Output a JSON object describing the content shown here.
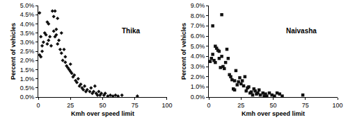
{
  "chart_data": [
    {
      "type": "scatter",
      "title": "Thika",
      "xlabel": "Kmh over speed limit",
      "ylabel": "Percent of vehicles",
      "x": [
        1,
        1,
        2,
        2,
        3,
        3,
        4,
        5,
        6,
        7,
        7,
        8,
        8,
        9,
        10,
        11,
        12,
        12,
        13,
        13,
        14,
        14,
        15,
        15,
        16,
        17,
        18,
        18,
        19,
        20,
        21,
        21,
        22,
        23,
        24,
        25,
        25,
        26,
        27,
        28,
        29,
        30,
        31,
        32,
        33,
        34,
        35,
        36,
        37,
        38,
        40,
        41,
        42,
        43,
        44,
        45,
        46,
        47,
        48,
        49,
        51,
        52,
        54,
        56,
        58,
        60,
        62,
        65,
        77
      ],
      "values": [
        4.6,
        2.3,
        2.2,
        3.3,
        2.8,
        2.5,
        3.0,
        3.5,
        3.4,
        4.1,
        2.9,
        4.0,
        3.1,
        3.3,
        2.8,
        4.7,
        3.6,
        4.4,
        3.3,
        4.7,
        3.4,
        3.7,
        4.3,
        2.9,
        3.1,
        2.6,
        2.4,
        3.5,
        2.0,
        2.6,
        1.9,
        2.2,
        1.7,
        1.6,
        1.5,
        1.4,
        1.8,
        1.3,
        1.1,
        1.2,
        0.9,
        0.8,
        1.0,
        0.6,
        0.7,
        0.5,
        0.4,
        0.6,
        0.3,
        0.4,
        0.3,
        0.5,
        0.2,
        0.3,
        0.6,
        0.2,
        0.1,
        0.3,
        0.1,
        0.2,
        0.1,
        0.2,
        0.05,
        0.1,
        0.05,
        0.1,
        0.05,
        0.1,
        0.05
      ],
      "xlim": [
        0,
        100
      ],
      "xticks": [
        0,
        25,
        50,
        75,
        100
      ],
      "ylim": [
        0,
        5
      ],
      "yticks": [
        {
          "value": 0,
          "label": "0.0%"
        },
        {
          "value": 0.5,
          "label": "0.5%"
        },
        {
          "value": 1,
          "label": "1.0%"
        },
        {
          "value": 1.5,
          "label": "1.5%"
        },
        {
          "value": 2,
          "label": "2.0%"
        },
        {
          "value": 2.5,
          "label": "2.5%"
        },
        {
          "value": 3,
          "label": "3.0%"
        },
        {
          "value": 3.5,
          "label": "3.5%"
        },
        {
          "value": 4,
          "label": "4.0%"
        },
        {
          "value": 4.5,
          "label": "4.5%"
        },
        {
          "value": 5,
          "label": "5.0%"
        }
      ],
      "marker": "diamond",
      "color": "#111111",
      "grid": false
    },
    {
      "type": "scatter",
      "title": "Naivasha",
      "xlabel": "Kmh over speed limit",
      "ylabel": "Percent of vehicles",
      "x": [
        1,
        2,
        3,
        3,
        4,
        5,
        5,
        6,
        7,
        8,
        8,
        9,
        10,
        10,
        11,
        12,
        13,
        14,
        15,
        16,
        17,
        18,
        19,
        20,
        20,
        21,
        22,
        23,
        24,
        25,
        26,
        27,
        28,
        29,
        30,
        31,
        32,
        33,
        34,
        35,
        36,
        37,
        38,
        39,
        40,
        42,
        43,
        44,
        45,
        47,
        49,
        51,
        53,
        55,
        57,
        73
      ],
      "values": [
        3.5,
        3.8,
        7.0,
        4.2,
        3.6,
        5.0,
        3.4,
        4.8,
        4.6,
        3.8,
        4.5,
        2.9,
        8.1,
        4.0,
        3.0,
        2.8,
        3.4,
        4.7,
        3.8,
        2.2,
        2.0,
        1.7,
        0.8,
        1.6,
        0.7,
        2.6,
        1.2,
        1.5,
        1.9,
        1.3,
        1.6,
        1.1,
        2.0,
        0.6,
        0.9,
        1.0,
        0.4,
        0.5,
        0.2,
        0.8,
        0.6,
        0.3,
        0.4,
        0.7,
        0.2,
        0.4,
        0.1,
        0.3,
        0.1,
        0.4,
        0.2,
        0.1,
        0.4,
        0.3,
        0.1,
        0.2
      ],
      "xlim": [
        0,
        100
      ],
      "xticks": [
        0,
        25,
        50,
        75,
        100
      ],
      "ylim": [
        0,
        9
      ],
      "yticks": [
        {
          "value": 0,
          "label": "0.0%"
        },
        {
          "value": 1,
          "label": "1.0%"
        },
        {
          "value": 2,
          "label": "2.0%"
        },
        {
          "value": 3,
          "label": "3.0%"
        },
        {
          "value": 4,
          "label": "4.0%"
        },
        {
          "value": 5,
          "label": "5.0%"
        },
        {
          "value": 6,
          "label": "6.0%"
        },
        {
          "value": 7,
          "label": "7.0%"
        },
        {
          "value": 8,
          "label": "8.0%"
        },
        {
          "value": 9,
          "label": "9.0%"
        }
      ],
      "marker": "square",
      "color": "#111111",
      "grid": false
    }
  ]
}
